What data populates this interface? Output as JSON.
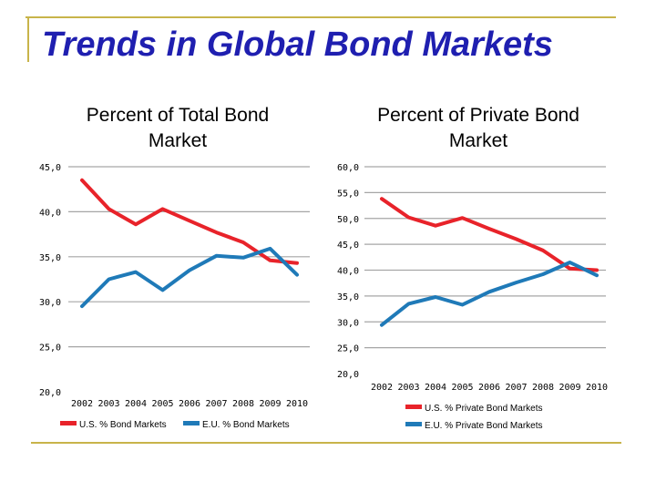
{
  "slide": {
    "title": "Trends in Global Bond Markets"
  },
  "colors": {
    "title": "#1f1fb0",
    "accent_rule": "#c8b44a",
    "us_series": "#e8232a",
    "eu_series": "#1f7ab8",
    "gridline": "#a6a6a6"
  },
  "chart_data": [
    {
      "type": "line",
      "title": "Percent of Total Bond Market",
      "title_lines": [
        "Percent of Total Bond",
        "Market"
      ],
      "categories": [
        "2002",
        "2003",
        "2004",
        "2005",
        "2006",
        "2007",
        "2008",
        "2009",
        "2010"
      ],
      "ylim": [
        20,
        45
      ],
      "yticks": [
        20,
        25,
        30,
        35,
        40,
        45
      ],
      "ytick_labels": [
        "20,0",
        "25,0",
        "30,0",
        "35,0",
        "40,0",
        "45,0"
      ],
      "grid": true,
      "legend_position": "bottom",
      "series": [
        {
          "name": "U.S. % Bond Markets",
          "color": "#e8232a",
          "values": [
            43.5,
            40.3,
            38.6,
            40.3,
            39.0,
            37.7,
            36.6,
            34.6,
            34.3
          ]
        },
        {
          "name": "E.U. % Bond Markets",
          "color": "#1f7ab8",
          "values": [
            29.5,
            32.5,
            33.3,
            31.3,
            33.5,
            35.1,
            34.9,
            35.9,
            33.0
          ]
        }
      ]
    },
    {
      "type": "line",
      "title": "Percent of Private Bond Market",
      "title_lines": [
        "Percent of Private Bond",
        "Market"
      ],
      "categories": [
        "2002",
        "2003",
        "2004",
        "2005",
        "2006",
        "2007",
        "2008",
        "2009",
        "2010"
      ],
      "ylim": [
        20,
        60
      ],
      "yticks": [
        20,
        25,
        30,
        35,
        40,
        45,
        50,
        55,
        60
      ],
      "ytick_labels": [
        "20,0",
        "25,0",
        "30,0",
        "35,0",
        "40,0",
        "45,0",
        "50,0",
        "55,0",
        "60,0"
      ],
      "grid": true,
      "legend_position": "bottom",
      "series": [
        {
          "name": "U.S. % Private Bond Markets",
          "color": "#e8232a",
          "values": [
            53.8,
            50.2,
            48.6,
            50.1,
            48.0,
            46.0,
            43.8,
            40.3,
            40.0
          ]
        },
        {
          "name": "E.U. % Private Bond Markets",
          "color": "#1f7ab8",
          "values": [
            29.4,
            33.5,
            34.8,
            33.3,
            35.8,
            37.6,
            39.2,
            41.5,
            39.0
          ]
        }
      ]
    }
  ]
}
